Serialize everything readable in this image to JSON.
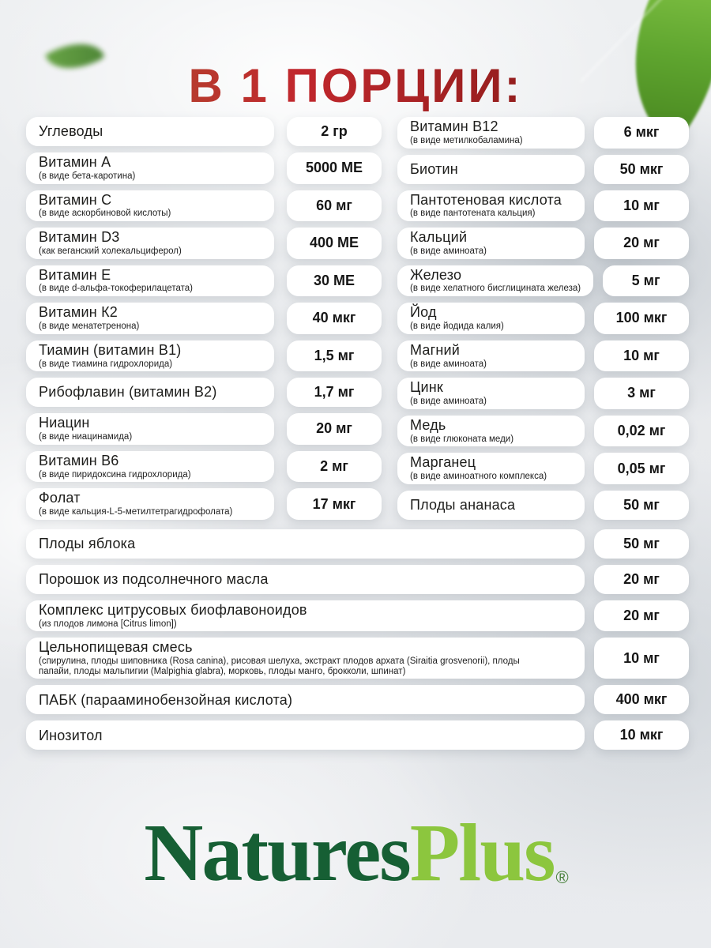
{
  "header": {
    "title": "В 1 ПОРЦИИ:"
  },
  "colors": {
    "title_gradient": [
      "#a8552e",
      "#c1272d",
      "#6e1413"
    ],
    "pill_background": "#ffffff",
    "page_background": "#e8eaed",
    "text": "#1d1d1b",
    "logo_dark_green": "#165f34",
    "logo_light_green": "#8cc63e",
    "leaf_green": "#5fa52f"
  },
  "table": {
    "left": [
      {
        "name": "Углеводы",
        "value": "2 гр"
      },
      {
        "name": "Витамин А",
        "sub": "(в виде бета-каротина)",
        "value": "5000 МЕ"
      },
      {
        "name": "Витамин С",
        "sub": "(в виде аскорбиновой кислоты)",
        "value": "60 мг"
      },
      {
        "name": "Витамин D3",
        "sub": "(как веганский холекальциферол)",
        "value": "400 МЕ"
      },
      {
        "name": "Витамин Е",
        "sub": "(в виде d-альфа-токоферилацетата)",
        "value": "30 МЕ"
      },
      {
        "name": "Витамин К2",
        "sub": "(в виде менатетренона)",
        "value": "40 мкг"
      },
      {
        "name": "Тиамин (витамин В1)",
        "sub": "(в виде тиамина гидрохлорида)",
        "value": "1,5 мг"
      },
      {
        "name": "Рибофлавин (витамин В2)",
        "value": "1,7 мг"
      },
      {
        "name": "Ниацин",
        "sub": "(в виде ниацинамида)",
        "value": "20 мг"
      },
      {
        "name": "Витамин В6",
        "sub": "(в виде пиридоксина гидрохлорида)",
        "value": "2 мг"
      },
      {
        "name": "Фолат",
        "sub": "(в виде кальция-L-5-метилтетрагидрофолата)",
        "value": "17 мкг"
      }
    ],
    "right": [
      {
        "name": "Витамин В12",
        "sub": "(в виде метилкобаламина)",
        "value": "6 мкг"
      },
      {
        "name": "Биотин",
        "value": "50 мкг"
      },
      {
        "name": "Пантотеновая кислота",
        "sub": "(в виде пантотената кальция)",
        "value": "10 мг"
      },
      {
        "name": "Кальций",
        "sub": "(в виде аминоата)",
        "value": "20 мг"
      },
      {
        "name": "Железо",
        "sub": "(в виде хелатного бисглицината железа)",
        "value": "5 мг"
      },
      {
        "name": "Йод",
        "sub": "(в виде йодида калия)",
        "value": "100 мкг"
      },
      {
        "name": "Магний",
        "sub": "(в виде аминоата)",
        "value": "10 мг"
      },
      {
        "name": "Цинк",
        "sub": "(в виде аминоата)",
        "value": "3 мг"
      },
      {
        "name": "Медь",
        "sub": "(в виде глюконата меди)",
        "value": "0,02 мг"
      },
      {
        "name": "Марганец",
        "sub": "(в виде аминоатного комплекса)",
        "value": "0,05 мг"
      },
      {
        "name": "Плоды ананаса",
        "value": "50 мг"
      }
    ],
    "full": [
      {
        "name": "Плоды яблока",
        "value": "50 мг"
      },
      {
        "name": "Порошок из подсолнечного масла",
        "value": "20 мг"
      },
      {
        "name": "Комплекс цитрусовых биофлавоноидов",
        "sub": "(из плодов лимона [Citrus limon])",
        "value": "20 мг"
      },
      {
        "name": "Цельнопищевая смесь",
        "sub": "(спирулина, плоды шиповника (Rosa canina), рисовая шелуха, экстракт плодов архата (Siraitia grosvenorii), плоды папайи, плоды мальпигии (Malpighia glabra), морковь, плоды манго, брокколи, шпинат)",
        "value": "10 мг"
      },
      {
        "name": "ПАБК (парааминобензойная кислота)",
        "value": "400 мкг"
      },
      {
        "name": "Инозитол",
        "value": "10 мкг"
      }
    ]
  },
  "logo": {
    "part1": "Natures",
    "part2": "Plus",
    "reg": "®"
  }
}
